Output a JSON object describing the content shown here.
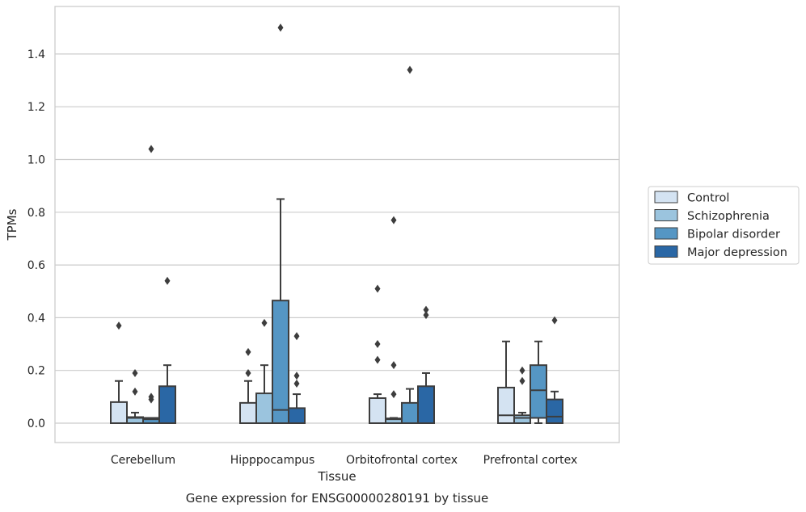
{
  "chart_data": {
    "type": "box",
    "xlabel": "Tissue",
    "ylabel": "TPMs",
    "caption": "Gene expression for ENSG00000280191 by tissue",
    "ylim": [
      -0.07,
      1.58
    ],
    "yticks": [
      0.0,
      0.2,
      0.4,
      0.6,
      0.8,
      1.0,
      1.2,
      1.4
    ],
    "ytick_labels": [
      "0.0",
      "0.2",
      "0.4",
      "0.6",
      "0.8",
      "1.0",
      "1.2",
      "1.4"
    ],
    "grid": "horizontal",
    "legend_position": "right",
    "categories": [
      "Cerebellum",
      "Hipppocampus",
      "Orbitofrontal cortex",
      "Prefrontal cortex"
    ],
    "series": [
      {
        "name": "Control",
        "color": "#d4e3f2",
        "boxes": [
          {
            "min": 0.0,
            "q1": 0.0,
            "median": 0.0,
            "q3": 0.08,
            "max": 0.16,
            "outliers": [
              0.37
            ]
          },
          {
            "min": 0.0,
            "q1": 0.0,
            "median": 0.0,
            "q3": 0.077,
            "max": 0.16,
            "outliers": [
              0.19,
              0.27
            ]
          },
          {
            "min": 0.0,
            "q1": 0.0,
            "median": 0.0,
            "q3": 0.095,
            "max": 0.11,
            "outliers": [
              0.24,
              0.3,
              0.51
            ]
          },
          {
            "min": 0.0,
            "q1": 0.0,
            "median": 0.03,
            "q3": 0.135,
            "max": 0.31,
            "outliers": []
          }
        ]
      },
      {
        "name": "Schizophrenia",
        "color": "#9bc4de",
        "boxes": [
          {
            "min": 0.0,
            "q1": 0.0,
            "median": 0.02,
            "q3": 0.023,
            "max": 0.04,
            "outliers": [
              0.12,
              0.19
            ]
          },
          {
            "min": 0.0,
            "q1": 0.0,
            "median": 0.0,
            "q3": 0.113,
            "max": 0.22,
            "outliers": [
              0.38
            ]
          },
          {
            "min": 0.0,
            "q1": 0.0,
            "median": 0.015,
            "q3": 0.018,
            "max": 0.02,
            "outliers": [
              0.11,
              0.22,
              0.77
            ]
          },
          {
            "min": 0.0,
            "q1": 0.0,
            "median": 0.02,
            "q3": 0.03,
            "max": 0.04,
            "outliers": [
              0.16,
              0.2
            ]
          }
        ]
      },
      {
        "name": "Bipolar disorder",
        "color": "#5596c4",
        "boxes": [
          {
            "min": 0.0,
            "q1": 0.0,
            "median": 0.015,
            "q3": 0.02,
            "max": 0.02,
            "outliers": [
              0.09,
              0.1,
              1.04
            ]
          },
          {
            "min": 0.0,
            "q1": 0.0,
            "median": 0.05,
            "q3": 0.465,
            "max": 0.85,
            "outliers": [
              1.5
            ]
          },
          {
            "min": 0.0,
            "q1": 0.0,
            "median": 0.0,
            "q3": 0.077,
            "max": 0.13,
            "outliers": [
              1.34
            ]
          },
          {
            "min": 0.0,
            "q1": 0.02,
            "median": 0.125,
            "q3": 0.22,
            "max": 0.31,
            "outliers": []
          }
        ]
      },
      {
        "name": "Major depression",
        "color": "#2a67a5",
        "boxes": [
          {
            "min": 0.0,
            "q1": 0.0,
            "median": 0.0,
            "q3": 0.14,
            "max": 0.22,
            "outliers": [
              0.54
            ]
          },
          {
            "min": 0.0,
            "q1": 0.0,
            "median": 0.0,
            "q3": 0.057,
            "max": 0.11,
            "outliers": [
              0.15,
              0.18,
              0.33
            ]
          },
          {
            "min": 0.0,
            "q1": 0.0,
            "median": 0.0,
            "q3": 0.14,
            "max": 0.19,
            "outliers": [
              0.41,
              0.43
            ]
          },
          {
            "min": 0.0,
            "q1": 0.0,
            "median": 0.025,
            "q3": 0.09,
            "max": 0.12,
            "outliers": [
              0.39
            ]
          }
        ]
      }
    ]
  }
}
